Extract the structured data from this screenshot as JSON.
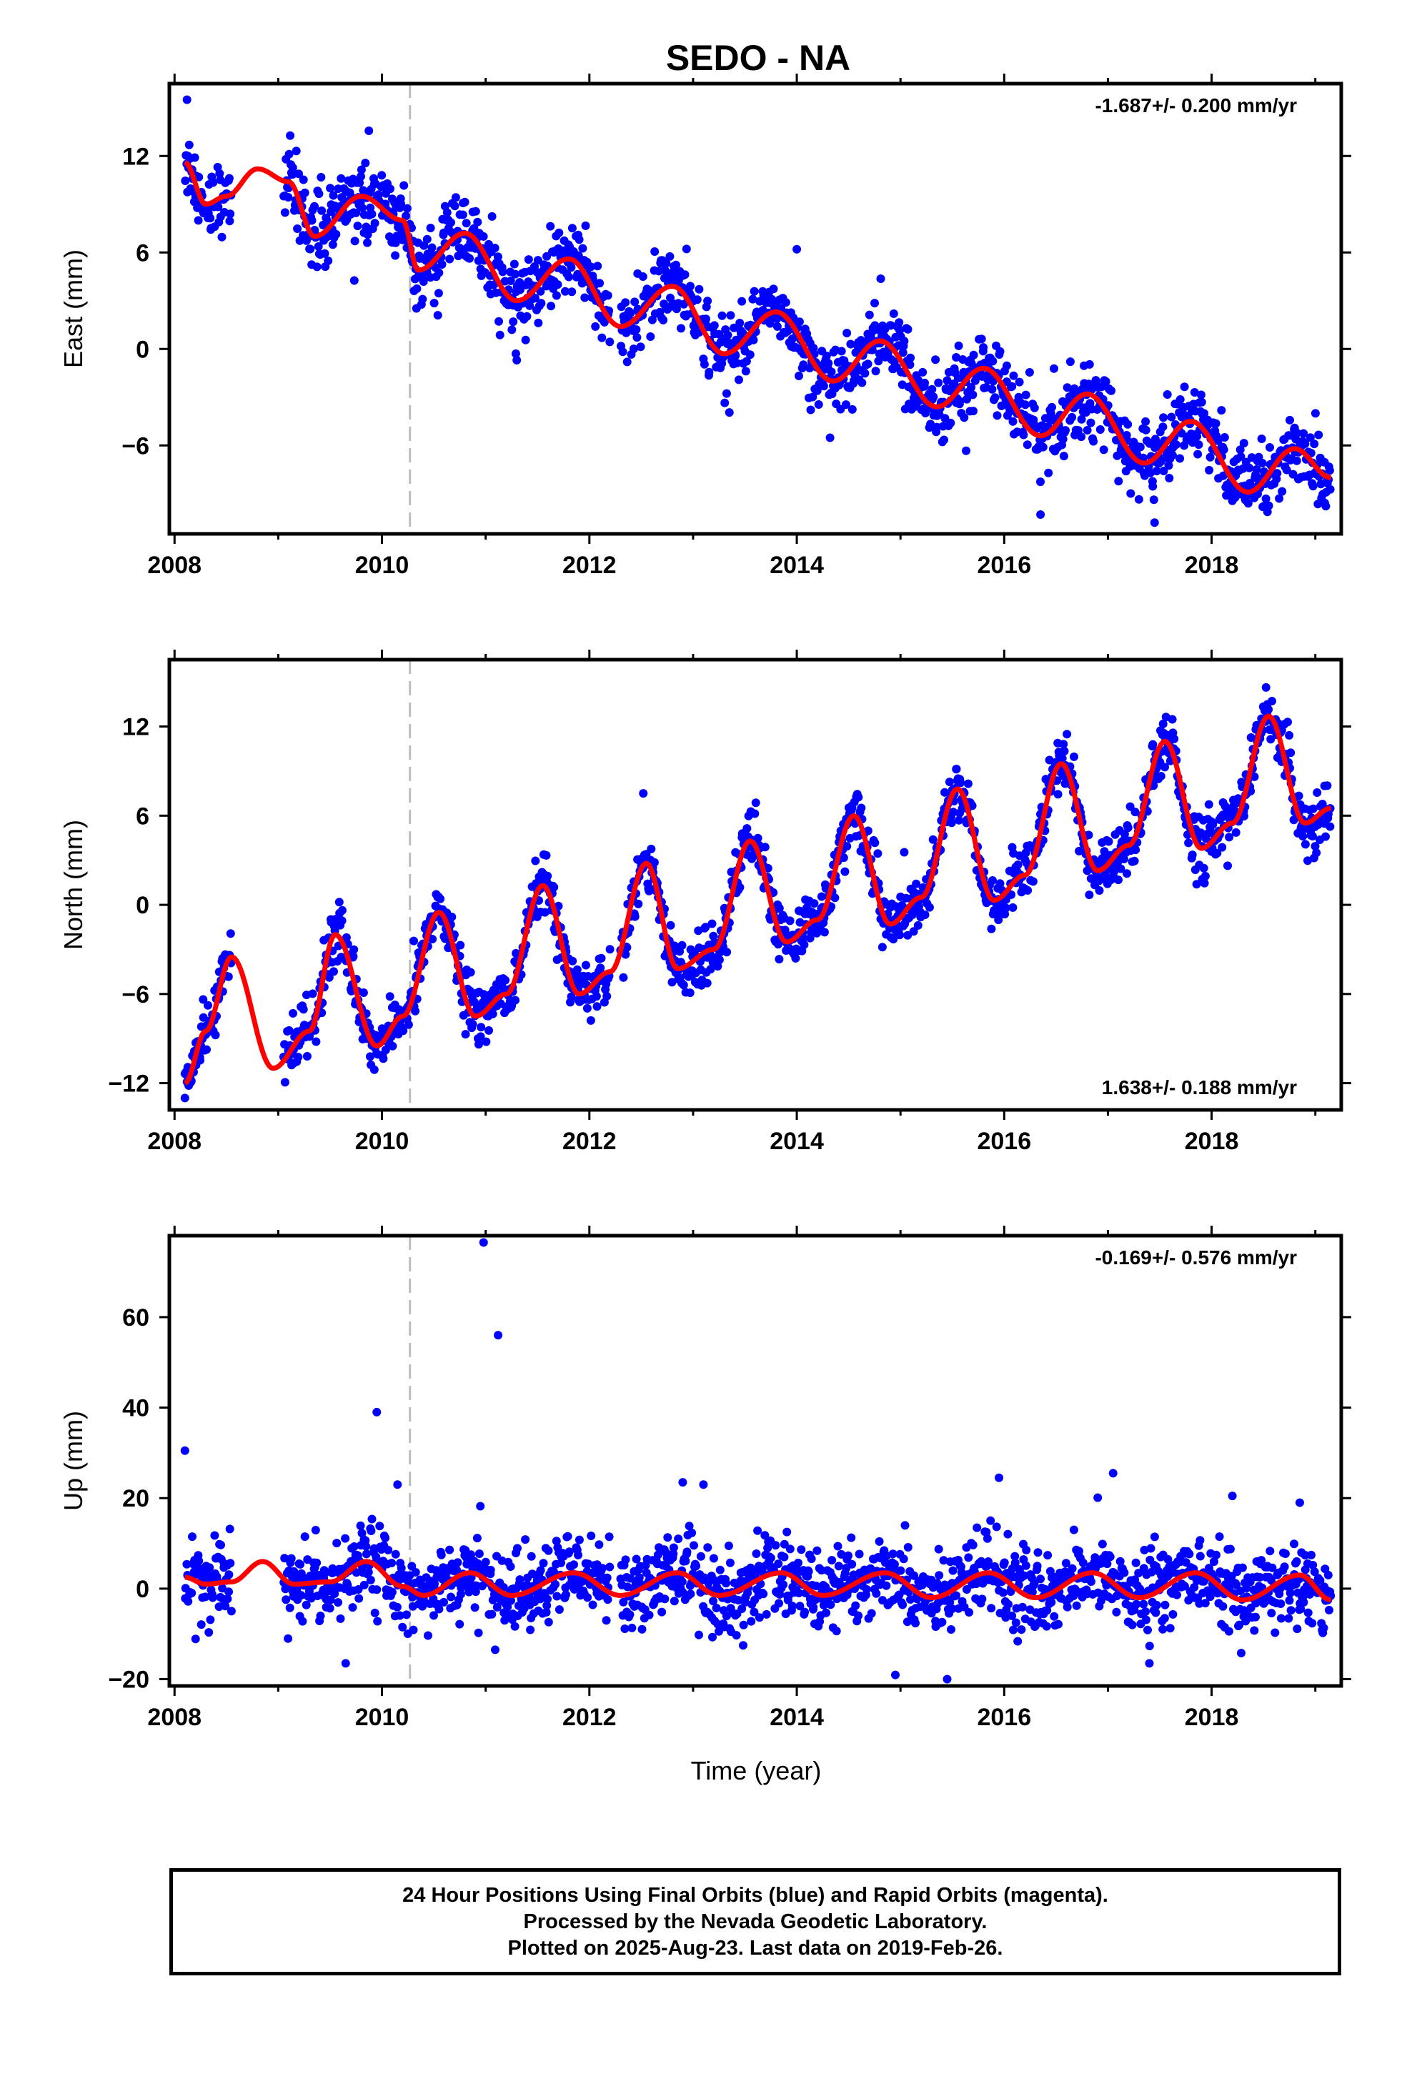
{
  "title": "SEDO - NA",
  "xlabel": "Time (year)",
  "footer": {
    "line1": "24 Hour Positions Using Final Orbits (blue) and Rapid Orbits (magenta).",
    "line2": "Processed by the Nevada Geodetic Laboratory.",
    "line3": "Plotted on 2025-Aug-23. Last data on 2019-Feb-26."
  },
  "colors": {
    "points": "#0000ff",
    "fit": "#ff0000",
    "reference_line": "#bdbdbd",
    "frame": "#000000"
  },
  "chart_data": [
    {
      "type": "scatter",
      "ylabel": "East (mm)",
      "rate_text": "-1.687+/- 0.200 mm/yr",
      "rate_position": "top-right",
      "xlim": [
        2007.95,
        2019.25
      ],
      "ylim": [
        -11.5,
        16.5
      ],
      "xticks": [
        2008,
        2010,
        2012,
        2014,
        2016,
        2018
      ],
      "yticks": [
        -6,
        0,
        6,
        12
      ],
      "reference_line_x": 2010.27,
      "series": [
        {
          "type": "line",
          "x": [
            2008.1,
            2008.3,
            2008.5,
            2008.8,
            2009.1,
            2009.35,
            2009.8,
            2010.2,
            2010.35,
            2010.8,
            2011.3,
            2011.8,
            2012.3,
            2012.8,
            2013.3,
            2013.8,
            2014.35,
            2014.8,
            2015.35,
            2015.8,
            2016.35,
            2016.8,
            2017.35,
            2017.8,
            2018.35,
            2018.8,
            2019.15
          ],
          "values": [
            11.6,
            9.0,
            9.5,
            11.2,
            10.4,
            7.0,
            9.5,
            8.0,
            4.9,
            7.2,
            3.0,
            5.6,
            1.4,
            3.9,
            -0.3,
            2.3,
            -2.0,
            0.5,
            -3.6,
            -1.2,
            -5.4,
            -2.8,
            -7.1,
            -4.5,
            -8.9,
            -6.2,
            -8.0
          ]
        },
        {
          "type": "scatter",
          "segments": [
            [
              2008.1,
              2008.55
            ],
            [
              2009.05,
              2012.2
            ],
            [
              2012.3,
              2019.15
            ]
          ],
          "offset": 0,
          "noise": 1.1,
          "spikes": [
            [
              2008.12,
              15.5
            ],
            [
              2011.3,
              -0.7
            ],
            [
              2014.0,
              6.2
            ],
            [
              2016.35,
              -10.3
            ],
            [
              2017.45,
              -10.8
            ]
          ]
        }
      ]
    },
    {
      "type": "scatter",
      "ylabel": "North (mm)",
      "rate_text": "1.638+/- 0.188 mm/yr",
      "rate_position": "bottom-right",
      "xlim": [
        2007.95,
        2019.25
      ],
      "ylim": [
        -13.8,
        16.5
      ],
      "xticks": [
        2008,
        2010,
        2012,
        2014,
        2016,
        2018
      ],
      "yticks": [
        -12,
        -6,
        0,
        6,
        12
      ],
      "reference_line_x": 2010.27,
      "series": [
        {
          "type": "line",
          "x": [
            2008.1,
            2008.3,
            2008.55,
            2008.95,
            2009.3,
            2009.55,
            2009.95,
            2010.2,
            2010.55,
            2010.9,
            2011.2,
            2011.55,
            2011.9,
            2012.2,
            2012.55,
            2012.85,
            2013.2,
            2013.55,
            2013.9,
            2014.2,
            2014.55,
            2014.9,
            2015.2,
            2015.55,
            2015.9,
            2016.2,
            2016.55,
            2016.9,
            2017.2,
            2017.55,
            2017.9,
            2018.2,
            2018.55,
            2018.9,
            2019.15
          ],
          "values": [
            -12.0,
            -8.5,
            -3.5,
            -11.0,
            -8.5,
            -2.0,
            -9.5,
            -7.5,
            -0.5,
            -7.5,
            -6.0,
            1.3,
            -6.0,
            -4.5,
            2.8,
            -4.3,
            -3.0,
            4.3,
            -2.5,
            -1.0,
            6.0,
            -1.3,
            0.5,
            7.8,
            0.3,
            2.0,
            9.5,
            2.3,
            4.0,
            11.0,
            3.8,
            5.5,
            12.7,
            5.5,
            6.5
          ]
        },
        {
          "type": "scatter",
          "segments": [
            [
              2008.1,
              2008.55
            ],
            [
              2009.05,
              2012.2
            ],
            [
              2012.3,
              2019.15
            ]
          ],
          "offset": 0,
          "noise": 0.9,
          "spikes": [
            [
              2012.52,
              7.5
            ],
            [
              2008.1,
              -13.0
            ]
          ]
        }
      ]
    },
    {
      "type": "scatter",
      "ylabel": "Up (mm)",
      "rate_text": "-0.169+/- 0.576 mm/yr",
      "rate_position": "top-right",
      "xlim": [
        2007.95,
        2019.25
      ],
      "ylim": [
        -21.5,
        78
      ],
      "xticks": [
        2008,
        2010,
        2012,
        2014,
        2016,
        2018
      ],
      "yticks": [
        -20,
        0,
        20,
        40,
        60
      ],
      "reference_line_x": 2010.27,
      "series": [
        {
          "type": "line",
          "x": [
            2008.1,
            2008.3,
            2008.55,
            2008.85,
            2009.15,
            2009.5,
            2009.85,
            2010.2,
            2010.4,
            2010.85,
            2011.25,
            2011.85,
            2012.3,
            2012.85,
            2013.25,
            2013.85,
            2014.25,
            2014.85,
            2015.3,
            2015.85,
            2016.3,
            2016.85,
            2017.3,
            2017.85,
            2018.3,
            2018.85,
            2019.15
          ],
          "values": [
            2.5,
            1.0,
            1.5,
            6.0,
            1.0,
            1.5,
            6.0,
            0.5,
            -1.5,
            3.5,
            -1.5,
            3.5,
            -1.5,
            3.5,
            -1.5,
            3.5,
            -1.5,
            3.5,
            -2.0,
            3.5,
            -2.0,
            3.5,
            -2.0,
            3.5,
            -2.5,
            3.0,
            -2.5
          ]
        },
        {
          "type": "scatter",
          "segments": [
            [
              2008.1,
              2008.55
            ],
            [
              2009.05,
              2012.2
            ],
            [
              2012.3,
              2019.15
            ]
          ],
          "offset": 0,
          "noise": 4.2,
          "spikes": [
            [
              2008.1,
              30.5
            ],
            [
              2009.95,
              39.0
            ],
            [
              2010.15,
              23.0
            ],
            [
              2010.98,
              76.5
            ],
            [
              2011.12,
              56.0
            ],
            [
              2012.9,
              23.5
            ],
            [
              2013.1,
              23.0
            ],
            [
              2015.95,
              24.5
            ],
            [
              2017.05,
              25.5
            ],
            [
              2018.2,
              20.5
            ],
            [
              2018.85,
              19.0
            ],
            [
              2015.45,
              -20.0
            ],
            [
              2009.65,
              -16.5
            ],
            [
              2017.4,
              -16.5
            ]
          ]
        }
      ]
    }
  ]
}
